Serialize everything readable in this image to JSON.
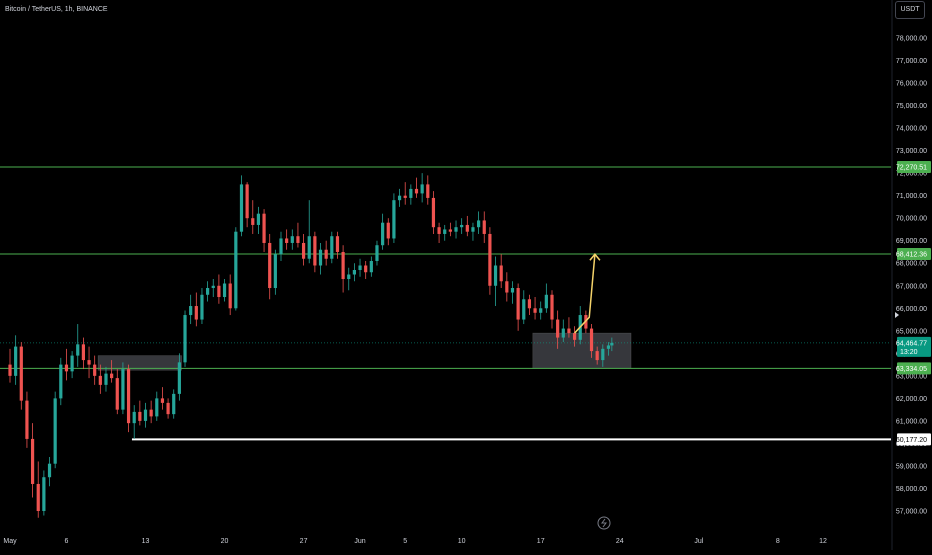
{
  "header": {
    "symbol": "Bitcoin / TetherUS, 1h, BINANCE",
    "currency": "USDT"
  },
  "chart_data": {
    "type": "candlestick",
    "yaxis": {
      "ticks": [
        "78,000.00",
        "77,000.00",
        "76,000.00",
        "75,000.00",
        "74,000.00",
        "73,000.00",
        "72,000.00",
        "71,000.00",
        "70,000.00",
        "69,000.00",
        "68,000.00",
        "67,000.00",
        "66,000.00",
        "65,000.00",
        "64,000.00",
        "63,000.00",
        "62,000.00",
        "61,000.00",
        "60,000.00",
        "59,000.00",
        "58,000.00",
        "57,000.00"
      ],
      "range": [
        56600,
        78600
      ]
    },
    "xaxis": {
      "ticks": [
        {
          "label": "May",
          "day": 0
        },
        {
          "label": "6",
          "day": 5
        },
        {
          "label": "13",
          "day": 12
        },
        {
          "label": "20",
          "day": 19
        },
        {
          "label": "27",
          "day": 26
        },
        {
          "label": "Jun",
          "day": 31
        },
        {
          "label": "5",
          "day": 35
        },
        {
          "label": "10",
          "day": 40
        },
        {
          "label": "17",
          "day": 47
        },
        {
          "label": "24",
          "day": 54
        },
        {
          "label": "Jul",
          "day": 61
        },
        {
          "label": "8",
          "day": 68
        },
        {
          "label": "12",
          "day": 72
        }
      ],
      "range": [
        -0.3,
        74
      ]
    },
    "levels": [
      {
        "value": 72270.51,
        "label": "72,270.51",
        "color": "#4caf50"
      },
      {
        "value": 68412.36,
        "label": "68,412.36",
        "color": "#4caf50"
      },
      {
        "value": 63334.05,
        "label": "63,334.05",
        "color": "#4caf50"
      },
      {
        "value": 60177.2,
        "label": "60,177.20",
        "color": "#ffffff",
        "from_day": 10.8
      }
    ],
    "current_price": {
      "value": 64464.77,
      "label": "64,464.77",
      "countdown": "13:20",
      "color": "#089981"
    },
    "zones": [
      {
        "day_from": 7.8,
        "day_to": 15.2,
        "low": 63250,
        "high": 63900
      },
      {
        "day_from": 46.3,
        "day_to": 55.0,
        "low": 63334.05,
        "high": 64900
      }
    ],
    "projection": [
      {
        "day": 50.0,
        "price": 64900
      },
      {
        "day": 51.3,
        "price": 65600
      },
      {
        "day": 51.8,
        "price": 68400
      }
    ],
    "candles": [
      {
        "day": 0.0,
        "o": 63500,
        "h": 64200,
        "l": 62700,
        "c": 63000
      },
      {
        "day": 0.5,
        "o": 63000,
        "h": 64800,
        "l": 62600,
        "c": 64300
      },
      {
        "day": 1.0,
        "o": 64300,
        "h": 64500,
        "l": 61500,
        "c": 61900
      },
      {
        "day": 1.5,
        "o": 61900,
        "h": 62300,
        "l": 59800,
        "c": 60200
      },
      {
        "day": 2.0,
        "o": 60200,
        "h": 60900,
        "l": 57600,
        "c": 58200
      },
      {
        "day": 2.5,
        "o": 58200,
        "h": 59200,
        "l": 56700,
        "c": 57000
      },
      {
        "day": 3.0,
        "o": 57000,
        "h": 58800,
        "l": 56800,
        "c": 58500
      },
      {
        "day": 3.5,
        "o": 58500,
        "h": 59400,
        "l": 58100,
        "c": 59100
      },
      {
        "day": 4.0,
        "o": 59100,
        "h": 62300,
        "l": 58900,
        "c": 62000
      },
      {
        "day": 4.5,
        "o": 62000,
        "h": 63800,
        "l": 61700,
        "c": 63500
      },
      {
        "day": 5.0,
        "o": 63500,
        "h": 64200,
        "l": 62800,
        "c": 63200
      },
      {
        "day": 5.5,
        "o": 63200,
        "h": 64100,
        "l": 62900,
        "c": 63900
      },
      {
        "day": 6.0,
        "o": 63900,
        "h": 65300,
        "l": 63400,
        "c": 64400
      },
      {
        "day": 6.5,
        "o": 64400,
        "h": 64700,
        "l": 63300,
        "c": 63700
      },
      {
        "day": 7.0,
        "o": 63700,
        "h": 64300,
        "l": 62900,
        "c": 63500
      },
      {
        "day": 7.5,
        "o": 63500,
        "h": 63900,
        "l": 62600,
        "c": 63000
      },
      {
        "day": 8.0,
        "o": 63000,
        "h": 63500,
        "l": 62200,
        "c": 62600
      },
      {
        "day": 8.5,
        "o": 62600,
        "h": 63400,
        "l": 62300,
        "c": 63100
      },
      {
        "day": 9.0,
        "o": 63100,
        "h": 63700,
        "l": 62700,
        "c": 62900
      },
      {
        "day": 9.5,
        "o": 62900,
        "h": 63300,
        "l": 61300,
        "c": 61500
      },
      {
        "day": 10.0,
        "o": 61500,
        "h": 63600,
        "l": 61300,
        "c": 63300
      },
      {
        "day": 10.5,
        "o": 63300,
        "h": 63500,
        "l": 60500,
        "c": 60900
      },
      {
        "day": 11.0,
        "o": 60900,
        "h": 61700,
        "l": 60200,
        "c": 61400
      },
      {
        "day": 11.5,
        "o": 61400,
        "h": 61900,
        "l": 60800,
        "c": 61000
      },
      {
        "day": 12.0,
        "o": 61000,
        "h": 61800,
        "l": 60700,
        "c": 61500
      },
      {
        "day": 12.5,
        "o": 61500,
        "h": 61900,
        "l": 60900,
        "c": 61200
      },
      {
        "day": 13.0,
        "o": 61200,
        "h": 62300,
        "l": 61000,
        "c": 62000
      },
      {
        "day": 13.5,
        "o": 62000,
        "h": 62500,
        "l": 61500,
        "c": 61800
      },
      {
        "day": 14.0,
        "o": 61800,
        "h": 62000,
        "l": 61100,
        "c": 61300
      },
      {
        "day": 14.5,
        "o": 61300,
        "h": 62400,
        "l": 61100,
        "c": 62200
      },
      {
        "day": 15.0,
        "o": 62200,
        "h": 64000,
        "l": 61900,
        "c": 63600
      },
      {
        "day": 15.5,
        "o": 63600,
        "h": 65900,
        "l": 63400,
        "c": 65700
      },
      {
        "day": 16.0,
        "o": 65700,
        "h": 66600,
        "l": 65300,
        "c": 66100
      },
      {
        "day": 16.5,
        "o": 66100,
        "h": 66700,
        "l": 65200,
        "c": 65500
      },
      {
        "day": 17.0,
        "o": 65500,
        "h": 66900,
        "l": 65300,
        "c": 66600
      },
      {
        "day": 17.5,
        "o": 66600,
        "h": 67200,
        "l": 66300,
        "c": 66900
      },
      {
        "day": 18.0,
        "o": 66900,
        "h": 67300,
        "l": 66500,
        "c": 67000
      },
      {
        "day": 18.5,
        "o": 67000,
        "h": 67500,
        "l": 66200,
        "c": 66500
      },
      {
        "day": 19.0,
        "o": 66500,
        "h": 67300,
        "l": 66300,
        "c": 67100
      },
      {
        "day": 19.5,
        "o": 67100,
        "h": 67500,
        "l": 65700,
        "c": 66000
      },
      {
        "day": 20.0,
        "o": 66000,
        "h": 69600,
        "l": 65900,
        "c": 69400
      },
      {
        "day": 20.5,
        "o": 69400,
        "h": 71900,
        "l": 69200,
        "c": 71500
      },
      {
        "day": 21.0,
        "o": 71500,
        "h": 71600,
        "l": 69600,
        "c": 70000
      },
      {
        "day": 21.5,
        "o": 70000,
        "h": 70800,
        "l": 69300,
        "c": 69700
      },
      {
        "day": 22.0,
        "o": 69700,
        "h": 70500,
        "l": 69300,
        "c": 70200
      },
      {
        "day": 22.5,
        "o": 70200,
        "h": 70400,
        "l": 68500,
        "c": 68900
      },
      {
        "day": 23.0,
        "o": 68900,
        "h": 69300,
        "l": 66400,
        "c": 66900
      },
      {
        "day": 23.5,
        "o": 66900,
        "h": 68600,
        "l": 66600,
        "c": 68400
      },
      {
        "day": 24.0,
        "o": 68400,
        "h": 69400,
        "l": 68100,
        "c": 69100
      },
      {
        "day": 24.5,
        "o": 69100,
        "h": 69500,
        "l": 68600,
        "c": 68900
      },
      {
        "day": 25.0,
        "o": 68900,
        "h": 69500,
        "l": 68600,
        "c": 69200
      },
      {
        "day": 25.5,
        "o": 69200,
        "h": 69800,
        "l": 68700,
        "c": 68900
      },
      {
        "day": 26.0,
        "o": 68900,
        "h": 69300,
        "l": 67900,
        "c": 68200
      },
      {
        "day": 26.5,
        "o": 68200,
        "h": 70800,
        "l": 68000,
        "c": 69200
      },
      {
        "day": 27.0,
        "o": 69200,
        "h": 69400,
        "l": 67600,
        "c": 67900
      },
      {
        "day": 27.5,
        "o": 67900,
        "h": 68900,
        "l": 67500,
        "c": 68600
      },
      {
        "day": 28.0,
        "o": 68600,
        "h": 69000,
        "l": 67900,
        "c": 68200
      },
      {
        "day": 28.5,
        "o": 68200,
        "h": 69400,
        "l": 68000,
        "c": 69200
      },
      {
        "day": 29.0,
        "o": 69200,
        "h": 69400,
        "l": 68200,
        "c": 68500
      },
      {
        "day": 29.5,
        "o": 68500,
        "h": 68800,
        "l": 66700,
        "c": 67300
      },
      {
        "day": 30.0,
        "o": 67300,
        "h": 67800,
        "l": 66800,
        "c": 67500
      },
      {
        "day": 30.5,
        "o": 67500,
        "h": 68000,
        "l": 67200,
        "c": 67700
      },
      {
        "day": 31.0,
        "o": 67700,
        "h": 68200,
        "l": 67400,
        "c": 67900
      },
      {
        "day": 31.5,
        "o": 67900,
        "h": 68100,
        "l": 67300,
        "c": 67600
      },
      {
        "day": 32.0,
        "o": 67600,
        "h": 68300,
        "l": 67400,
        "c": 68100
      },
      {
        "day": 32.5,
        "o": 68100,
        "h": 69000,
        "l": 67900,
        "c": 68800
      },
      {
        "day": 33.0,
        "o": 68800,
        "h": 70200,
        "l": 68600,
        "c": 69800
      },
      {
        "day": 33.5,
        "o": 69800,
        "h": 70000,
        "l": 68800,
        "c": 69100
      },
      {
        "day": 34.0,
        "o": 69100,
        "h": 71100,
        "l": 68900,
        "c": 70800
      },
      {
        "day": 34.5,
        "o": 70800,
        "h": 71300,
        "l": 70500,
        "c": 71000
      },
      {
        "day": 35.0,
        "o": 71000,
        "h": 71600,
        "l": 70600,
        "c": 70900
      },
      {
        "day": 35.5,
        "o": 70900,
        "h": 71500,
        "l": 70600,
        "c": 71300
      },
      {
        "day": 36.0,
        "o": 71300,
        "h": 71800,
        "l": 70900,
        "c": 71100
      },
      {
        "day": 36.5,
        "o": 71100,
        "h": 72000,
        "l": 70700,
        "c": 71500
      },
      {
        "day": 37.0,
        "o": 71500,
        "h": 71900,
        "l": 70600,
        "c": 70900
      },
      {
        "day": 37.5,
        "o": 70900,
        "h": 71200,
        "l": 69300,
        "c": 69600
      },
      {
        "day": 38.0,
        "o": 69600,
        "h": 69800,
        "l": 68900,
        "c": 69300
      },
      {
        "day": 38.5,
        "o": 69300,
        "h": 69700,
        "l": 69000,
        "c": 69500
      },
      {
        "day": 39.0,
        "o": 69500,
        "h": 69800,
        "l": 69200,
        "c": 69400
      },
      {
        "day": 39.5,
        "o": 69400,
        "h": 69900,
        "l": 69100,
        "c": 69600
      },
      {
        "day": 40.0,
        "o": 69600,
        "h": 70000,
        "l": 69300,
        "c": 69700
      },
      {
        "day": 40.5,
        "o": 69700,
        "h": 70100,
        "l": 69200,
        "c": 69400
      },
      {
        "day": 41.0,
        "o": 69400,
        "h": 69800,
        "l": 69000,
        "c": 69600
      },
      {
        "day": 41.5,
        "o": 69600,
        "h": 70300,
        "l": 69300,
        "c": 69900
      },
      {
        "day": 42.0,
        "o": 69900,
        "h": 70300,
        "l": 68900,
        "c": 69300
      },
      {
        "day": 42.5,
        "o": 69300,
        "h": 69600,
        "l": 66600,
        "c": 67000
      },
      {
        "day": 43.0,
        "o": 67000,
        "h": 68300,
        "l": 66100,
        "c": 67900
      },
      {
        "day": 43.5,
        "o": 67900,
        "h": 68400,
        "l": 66900,
        "c": 67200
      },
      {
        "day": 44.0,
        "o": 67200,
        "h": 67600,
        "l": 66300,
        "c": 66700
      },
      {
        "day": 44.5,
        "o": 66700,
        "h": 67200,
        "l": 66200,
        "c": 66900
      },
      {
        "day": 45.0,
        "o": 66900,
        "h": 67100,
        "l": 65000,
        "c": 65500
      },
      {
        "day": 45.5,
        "o": 65500,
        "h": 66800,
        "l": 65300,
        "c": 66400
      },
      {
        "day": 46.0,
        "o": 66400,
        "h": 66600,
        "l": 65700,
        "c": 66000
      },
      {
        "day": 46.5,
        "o": 66000,
        "h": 66500,
        "l": 65500,
        "c": 65800
      },
      {
        "day": 47.0,
        "o": 65800,
        "h": 66300,
        "l": 65500,
        "c": 66000
      },
      {
        "day": 47.5,
        "o": 66000,
        "h": 67100,
        "l": 65800,
        "c": 66600
      },
      {
        "day": 48.0,
        "o": 66600,
        "h": 66800,
        "l": 65100,
        "c": 65500
      },
      {
        "day": 48.5,
        "o": 65500,
        "h": 65900,
        "l": 64200,
        "c": 64700
      },
      {
        "day": 49.0,
        "o": 64700,
        "h": 65500,
        "l": 64500,
        "c": 65100
      },
      {
        "day": 49.5,
        "o": 65100,
        "h": 65600,
        "l": 64700,
        "c": 64900
      },
      {
        "day": 50.0,
        "o": 64900,
        "h": 65200,
        "l": 64300,
        "c": 64600
      },
      {
        "day": 50.5,
        "o": 64600,
        "h": 66100,
        "l": 64400,
        "c": 65700
      },
      {
        "day": 51.0,
        "o": 65700,
        "h": 65900,
        "l": 64900,
        "c": 65100
      },
      {
        "day": 51.5,
        "o": 65100,
        "h": 65300,
        "l": 63800,
        "c": 64100
      },
      {
        "day": 52.0,
        "o": 64100,
        "h": 64300,
        "l": 63500,
        "c": 63700
      },
      {
        "day": 52.5,
        "o": 63700,
        "h": 64400,
        "l": 63400,
        "c": 64200
      },
      {
        "day": 53.0,
        "o": 64200,
        "h": 64500,
        "l": 63900,
        "c": 64350
      },
      {
        "day": 53.3,
        "o": 64350,
        "h": 64700,
        "l": 64100,
        "c": 64465
      }
    ]
  }
}
